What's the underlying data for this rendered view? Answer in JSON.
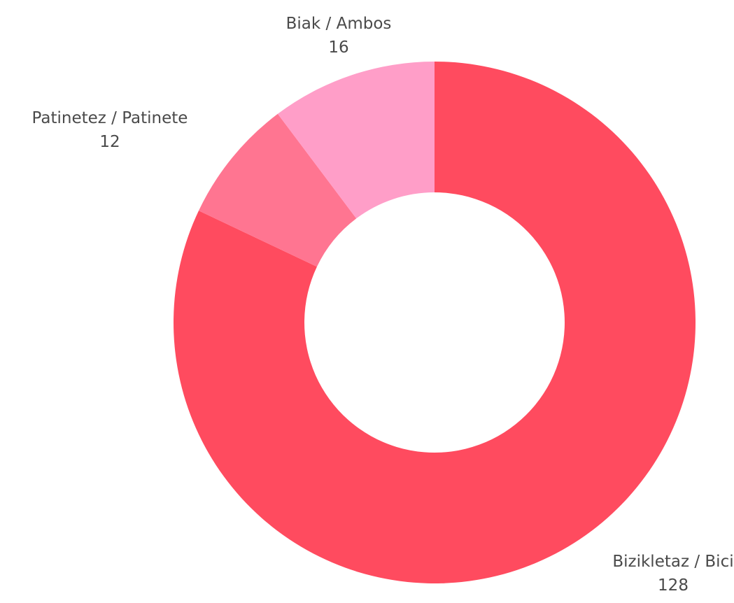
{
  "chart_data": {
    "type": "pie",
    "donut": true,
    "title": "",
    "slices": [
      {
        "label": "Bizikletaz / Bici",
        "value": 128,
        "color": "#ff4b5f"
      },
      {
        "label": "Patinetez / Patinete",
        "value": 12,
        "color": "#ff7591"
      },
      {
        "label": "Biak / Ambos",
        "value": 16,
        "color": "#ff9ec8"
      }
    ]
  }
}
